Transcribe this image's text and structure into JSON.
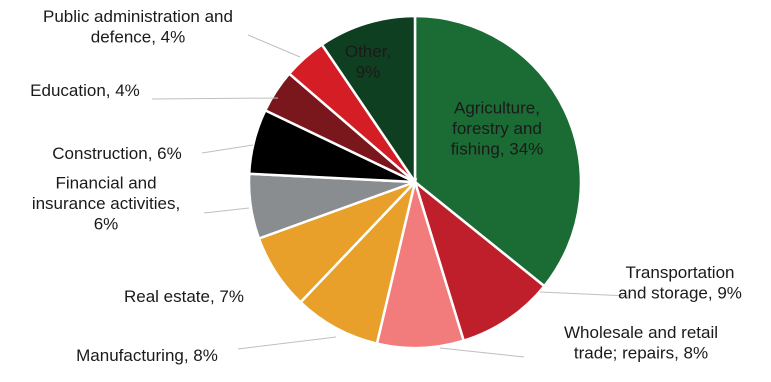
{
  "chart_data": {
    "type": "pie",
    "title": "",
    "slices": [
      {
        "label": "Agriculture, forestry and fishing",
        "value": 34,
        "display": "Agriculture, forestry and fishing, 34%",
        "color": "#1b6b34",
        "label_inside": true,
        "text_color": "#1a1a1a"
      },
      {
        "label": "Transportation and storage",
        "value": 9,
        "display": "Transportation and storage, 9%",
        "color": "#bf1f2a",
        "label_inside": false
      },
      {
        "label": "Wholesale and retail trade; repairs",
        "value": 8,
        "display": "Wholesale and retail trade; repairs, 8%",
        "color": "#f27b7c",
        "label_inside": false
      },
      {
        "label": "Manufacturing",
        "value": 8,
        "display": "Manufacturing, 8%",
        "color": "#e8a02a",
        "label_inside": false
      },
      {
        "label": "Real estate",
        "value": 7,
        "display": "Real estate, 7%",
        "color": "#e8a02a",
        "label_inside": false
      },
      {
        "label": "Financial and insurance activities",
        "value": 6,
        "display": "Financial and insurance activities, 6%",
        "color": "#8a8d8f",
        "label_inside": false
      },
      {
        "label": "Construction",
        "value": 6,
        "display": "Construction, 6%",
        "color": "#000000",
        "label_inside": false
      },
      {
        "label": "Education",
        "value": 4,
        "display": "Education, 4%",
        "color": "#7a171c",
        "label_inside": false
      },
      {
        "label": "Public administration and defence",
        "value": 4,
        "display": "Public administration and defence, 4%",
        "color": "#d51d25",
        "label_inside": false
      },
      {
        "label": "Other",
        "value": 9,
        "display": "Other, 9%",
        "color": "#0f3f21",
        "label_inside": true,
        "text_color": "#1a1a1a"
      }
    ],
    "legend": "none"
  }
}
